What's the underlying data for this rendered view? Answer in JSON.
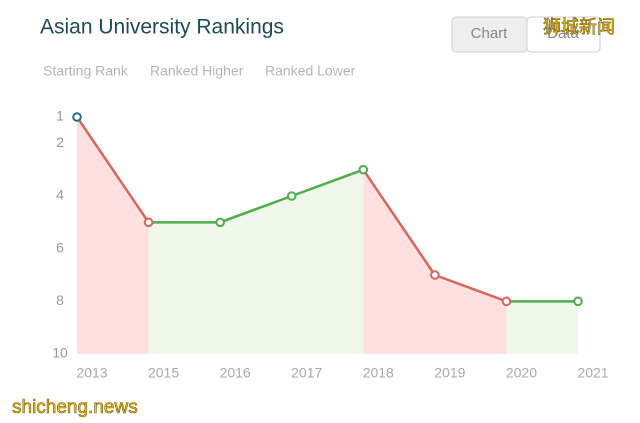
{
  "chart_data": {
    "type": "line",
    "title": "Asian University Rankings",
    "legend": [
      "Starting Rank",
      "Ranked Higher",
      "Ranked Lower"
    ],
    "buttons": [
      "Chart",
      "Data"
    ],
    "categories": [
      "2013",
      "2015",
      "2016",
      "2017",
      "2018",
      "2019",
      "2020",
      "2021"
    ],
    "values": [
      1,
      5,
      5,
      4,
      3,
      7,
      8,
      8
    ],
    "ylim": [
      10,
      1
    ],
    "yticks": [
      1,
      2,
      4,
      6,
      8,
      10
    ],
    "colors": {
      "start": "#1d6e86",
      "higher": "#4cae4c",
      "lower": "#d9655f",
      "higher_fill": "#f0f8ec",
      "lower_fill": "#fde0df"
    },
    "watermarks": [
      "狮城新闻",
      "shicheng.news"
    ]
  }
}
